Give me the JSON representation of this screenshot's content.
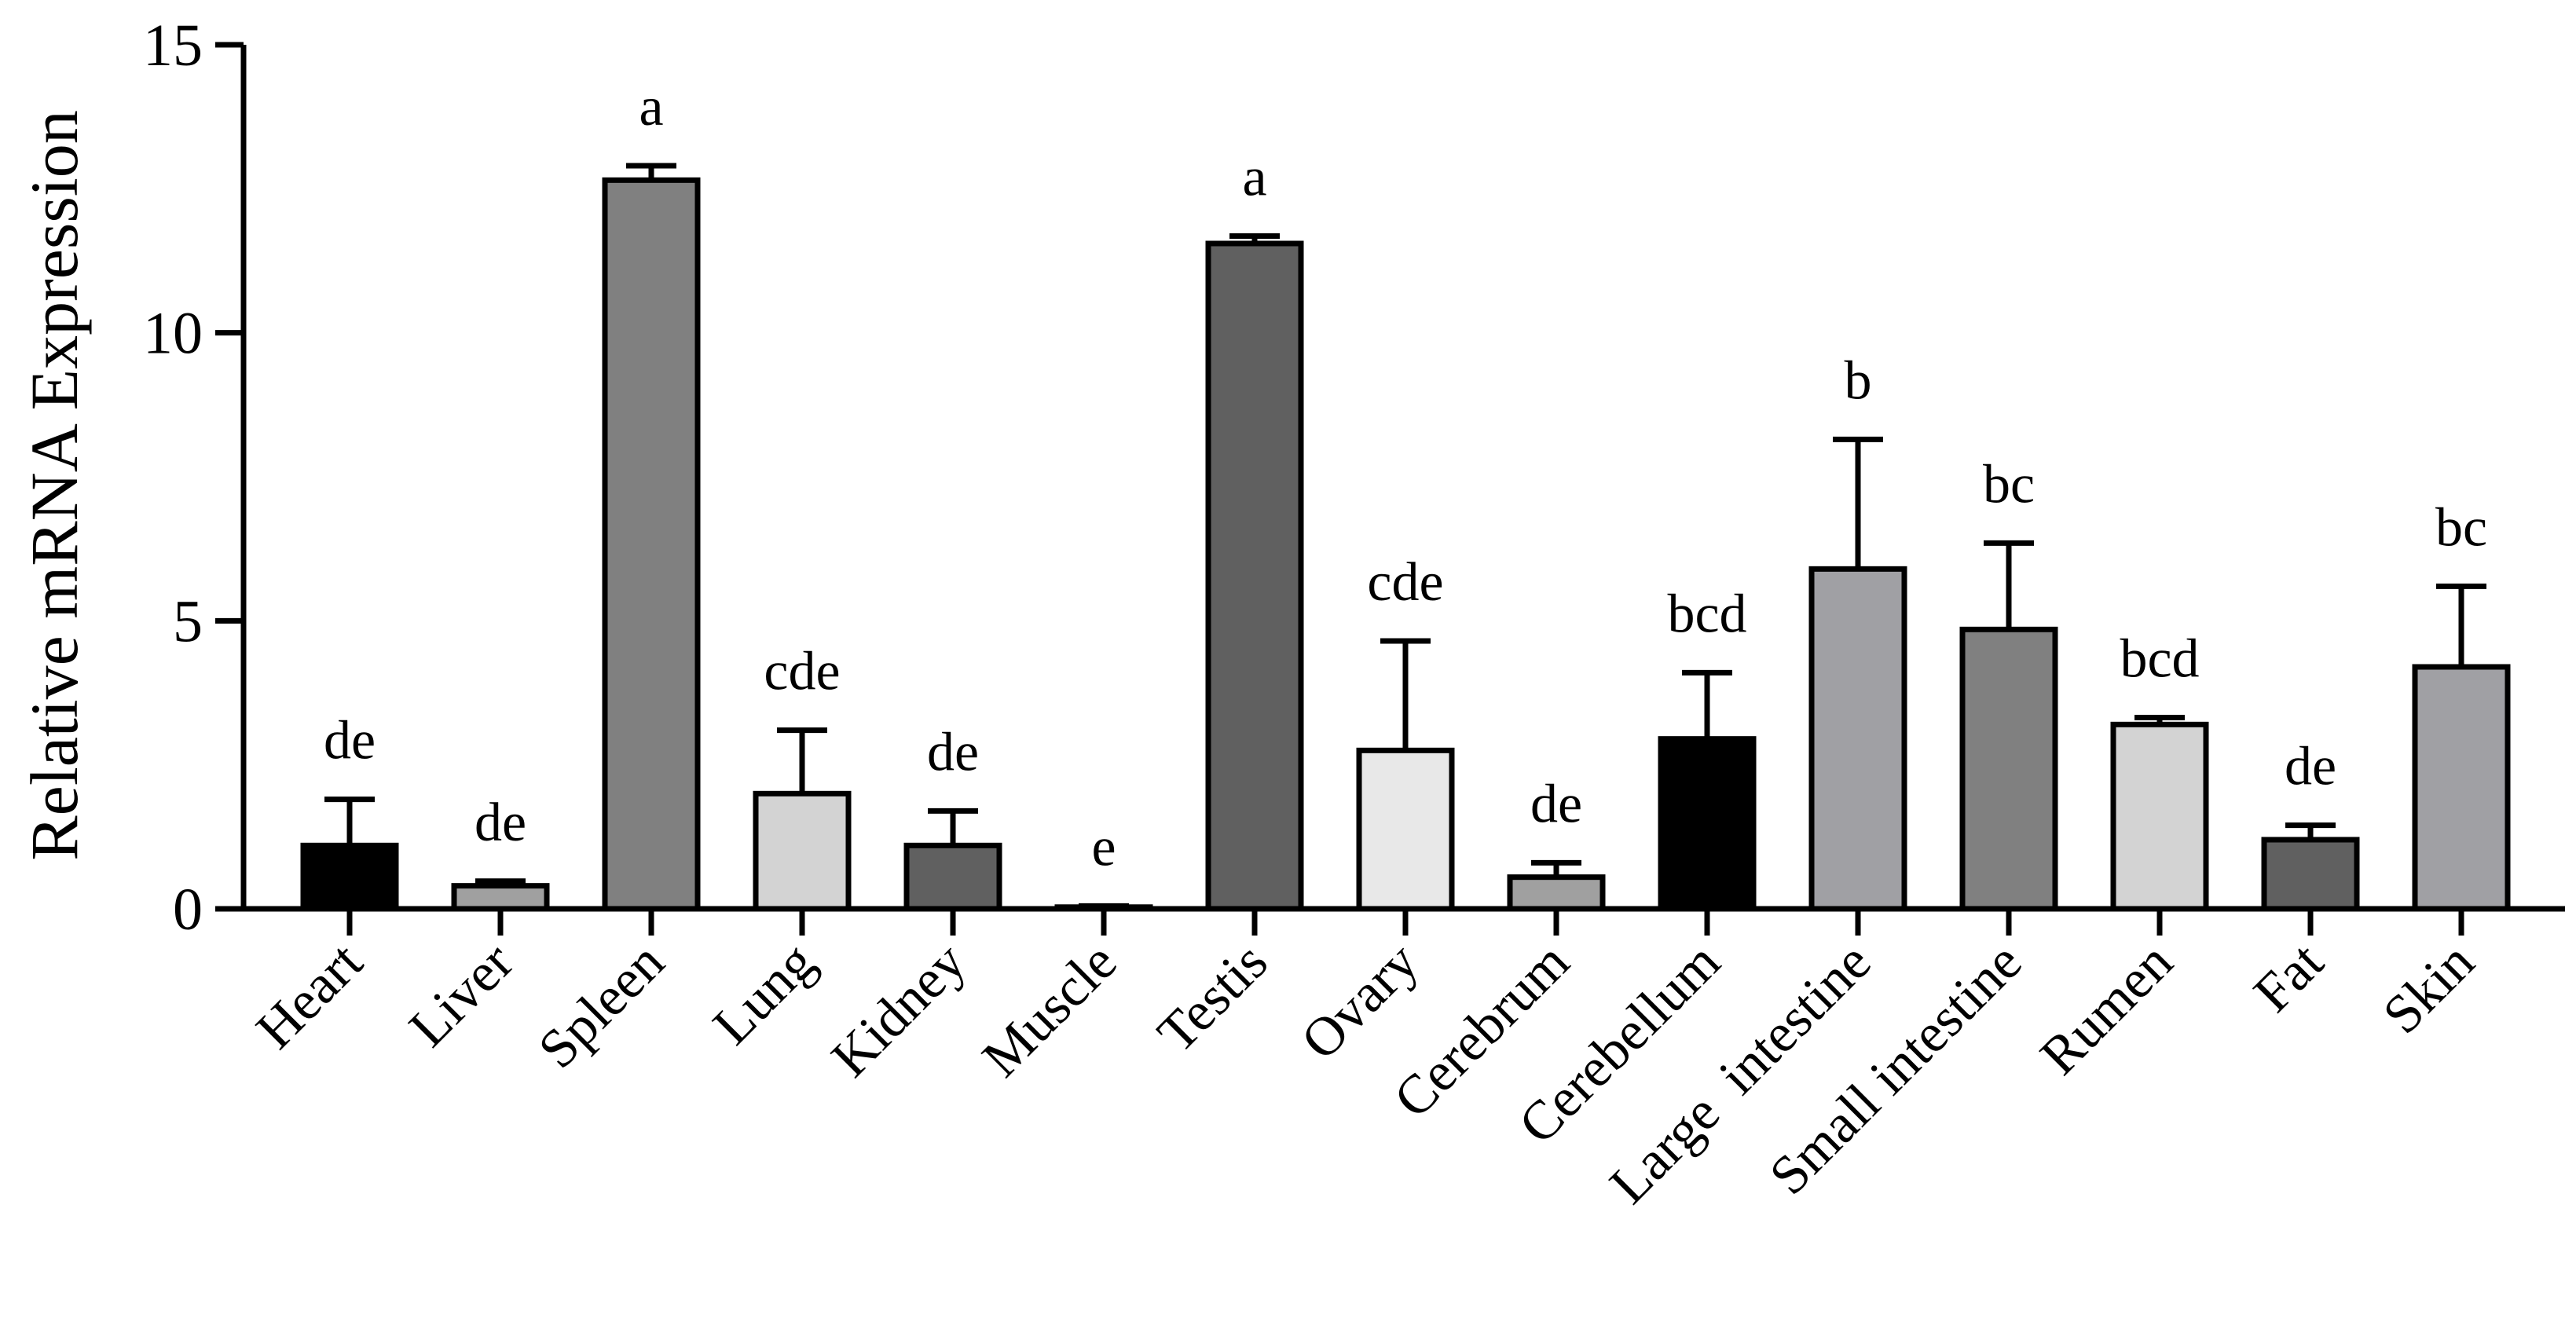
{
  "chart_data": {
    "type": "bar",
    "title": "",
    "xlabel": "",
    "ylabel": "Relative mRNA Expression",
    "ylim": [
      0,
      15
    ],
    "yticks": [
      "0",
      "5",
      "10",
      "15"
    ],
    "grid": false,
    "legend": "none",
    "categories": [
      "Heart",
      "Liver",
      "Spleen",
      "Lung",
      "Kidney",
      "Muscle",
      "Testis",
      "Ovary",
      "Cerebrum",
      "Cerebellum",
      "Large  intestine",
      "Small intestine",
      "Rumen",
      "Fat",
      "Skin"
    ],
    "values": [
      1.1,
      0.4,
      12.65,
      2.0,
      1.1,
      0.03,
      11.55,
      2.75,
      0.55,
      2.95,
      5.9,
      4.85,
      3.2,
      1.2,
      4.2
    ],
    "error": [
      0.8,
      0.08,
      0.25,
      1.1,
      0.6,
      0.02,
      0.13,
      1.9,
      0.25,
      1.15,
      2.25,
      1.5,
      0.12,
      0.25,
      1.4
    ],
    "significance": [
      "de",
      "de",
      "a",
      "cde",
      "de",
      "e",
      "a",
      "cde",
      "de",
      "bcd",
      "b",
      "bc",
      "bcd",
      "de",
      "bc"
    ],
    "colors": [
      "#000000",
      "#a0a0a0",
      "#808080",
      "#d3d3d3",
      "#606060",
      "#000000",
      "#606060",
      "#e8e8e8",
      "#a0a0a0",
      "#000000",
      "#a0a0a4",
      "#808080",
      "#d3d3d3",
      "#606060",
      "#a0a0a4"
    ]
  }
}
